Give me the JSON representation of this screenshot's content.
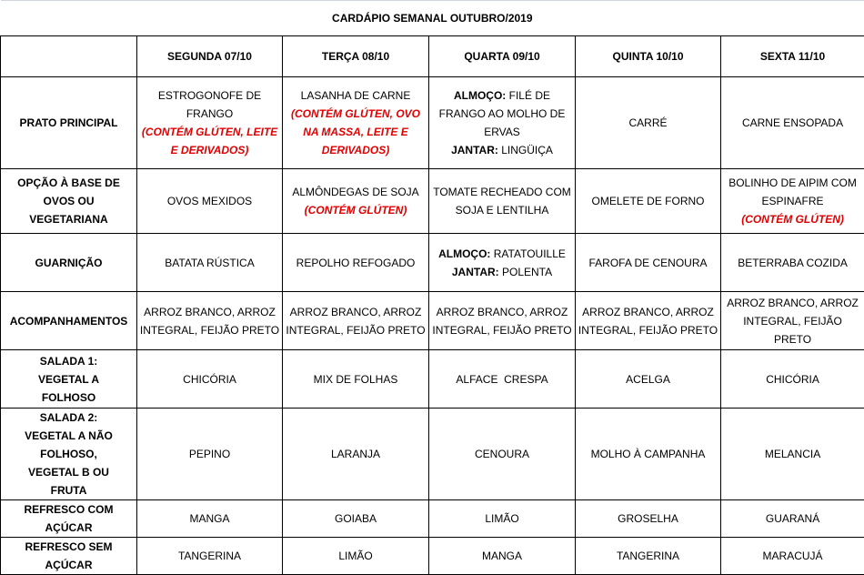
{
  "title": "CARDÁPIO SEMANAL OUTUBRO/2019",
  "days": [
    "SEGUNDA 07/10",
    "TERÇA 08/10",
    "QUARTA 09/10",
    "QUINTA 10/10",
    "SEXTA 11/10"
  ],
  "rows": [
    {
      "label": "PRATO PRINCIPAL",
      "cells": [
        [
          {
            "t": "ESTROGONOFE DE FRANGO"
          },
          {
            "t": "(CONTÉM GLÚTEN, LEITE E DERIVADOS)",
            "s": "red"
          }
        ],
        [
          {
            "t": "LASANHA DE CARNE"
          },
          {
            "t": "(CONTÉM GLÚTEN, OVO NA MASSA, LEITE E DERIVADOS)",
            "s": "red"
          }
        ],
        [
          {
            "t": "ALMOÇO:",
            "s": "b"
          },
          {
            "t": " FILÉ DE FRANGO AO MOLHO DE ERVAS",
            "inline": true
          },
          {
            "t": "JANTAR:",
            "s": "b"
          },
          {
            "t": " LINGÜIÇA",
            "inline": true
          }
        ],
        [
          {
            "t": "CARRÉ"
          }
        ],
        [
          {
            "t": "CARNE ENSOPADA"
          }
        ]
      ]
    },
    {
      "label": "OPÇÃO À BASE DE OVOS OU VEGETARIANA",
      "cells": [
        [
          {
            "t": "OVOS MEXIDOS"
          }
        ],
        [
          {
            "t": "ALMÔNDEGAS DE SOJA"
          },
          {
            "t": "(CONTÉM GLÚTEN)",
            "s": "red"
          }
        ],
        [
          {
            "t": "TOMATE RECHEADO COM SOJA E LENTILHA"
          }
        ],
        [
          {
            "t": "OMELETE DE FORNO"
          }
        ],
        [
          {
            "t": "BOLINHO DE AIPIM COM ESPINAFRE"
          },
          {
            "t": "(CONTÉM GLÚTEN)",
            "s": "red"
          }
        ]
      ]
    },
    {
      "label": "GUARNIÇÃO",
      "cells": [
        [
          {
            "t": "BATATA RÚSTICA"
          }
        ],
        [
          {
            "t": "REPOLHO REFOGADO"
          }
        ],
        [
          {
            "t": "ALMOÇO:",
            "s": "b"
          },
          {
            "t": " RATATOUILLE",
            "inline": true
          },
          {
            "t": "JANTAR:",
            "s": "b"
          },
          {
            "t": " POLENTA",
            "inline": true
          }
        ],
        [
          {
            "t": "FAROFA DE CENOURA"
          }
        ],
        [
          {
            "t": "BETERRABA COZIDA"
          }
        ]
      ]
    },
    {
      "label": "ACOMPANHAMENTOS",
      "cells": [
        [
          {
            "t": "ARROZ BRANCO, ARROZ INTEGRAL, FEIJÃO PRETO"
          }
        ],
        [
          {
            "t": "ARROZ BRANCO, ARROZ INTEGRAL, FEIJÃO PRETO"
          }
        ],
        [
          {
            "t": "ARROZ BRANCO, ARROZ INTEGRAL, FEIJÃO PRETO"
          }
        ],
        [
          {
            "t": "ARROZ BRANCO, ARROZ INTEGRAL, FEIJÃO PRETO"
          }
        ],
        [
          {
            "t": "ARROZ BRANCO, ARROZ INTEGRAL, FEIJÃO PRETO"
          }
        ]
      ]
    },
    {
      "label": "SALADA 1: VEGETAL A FOLHOSO",
      "cells": [
        [
          {
            "t": "CHICÓRIA"
          }
        ],
        [
          {
            "t": "MIX DE FOLHAS"
          }
        ],
        [
          {
            "t": "ALFACE  CRESPA"
          }
        ],
        [
          {
            "t": "ACELGA"
          }
        ],
        [
          {
            "t": "CHICÓRIA"
          }
        ]
      ]
    },
    {
      "label": "SALADA 2: VEGETAL A NÃO FOLHOSO, VEGETAL B OU FRUTA",
      "cells": [
        [
          {
            "t": "PEPINO"
          }
        ],
        [
          {
            "t": "LARANJA"
          }
        ],
        [
          {
            "t": "CENOURA"
          }
        ],
        [
          {
            "t": "MOLHO À CAMPANHA"
          }
        ],
        [
          {
            "t": "MELANCIA"
          }
        ]
      ]
    },
    {
      "label": "REFRESCO COM AÇÚCAR",
      "cells": [
        [
          {
            "t": "MANGA"
          }
        ],
        [
          {
            "t": "GOIABA"
          }
        ],
        [
          {
            "t": "LIMÃO"
          }
        ],
        [
          {
            "t": "GROSELHA"
          }
        ],
        [
          {
            "t": "GUARANÁ"
          }
        ]
      ]
    },
    {
      "label": "REFRESCO SEM AÇÚCAR",
      "cells": [
        [
          {
            "t": "TANGERINA"
          }
        ],
        [
          {
            "t": "LIMÃO"
          }
        ],
        [
          {
            "t": "MANGA"
          }
        ],
        [
          {
            "t": "TANGERINA"
          }
        ],
        [
          {
            "t": "MARACUJÁ"
          }
        ]
      ]
    }
  ]
}
